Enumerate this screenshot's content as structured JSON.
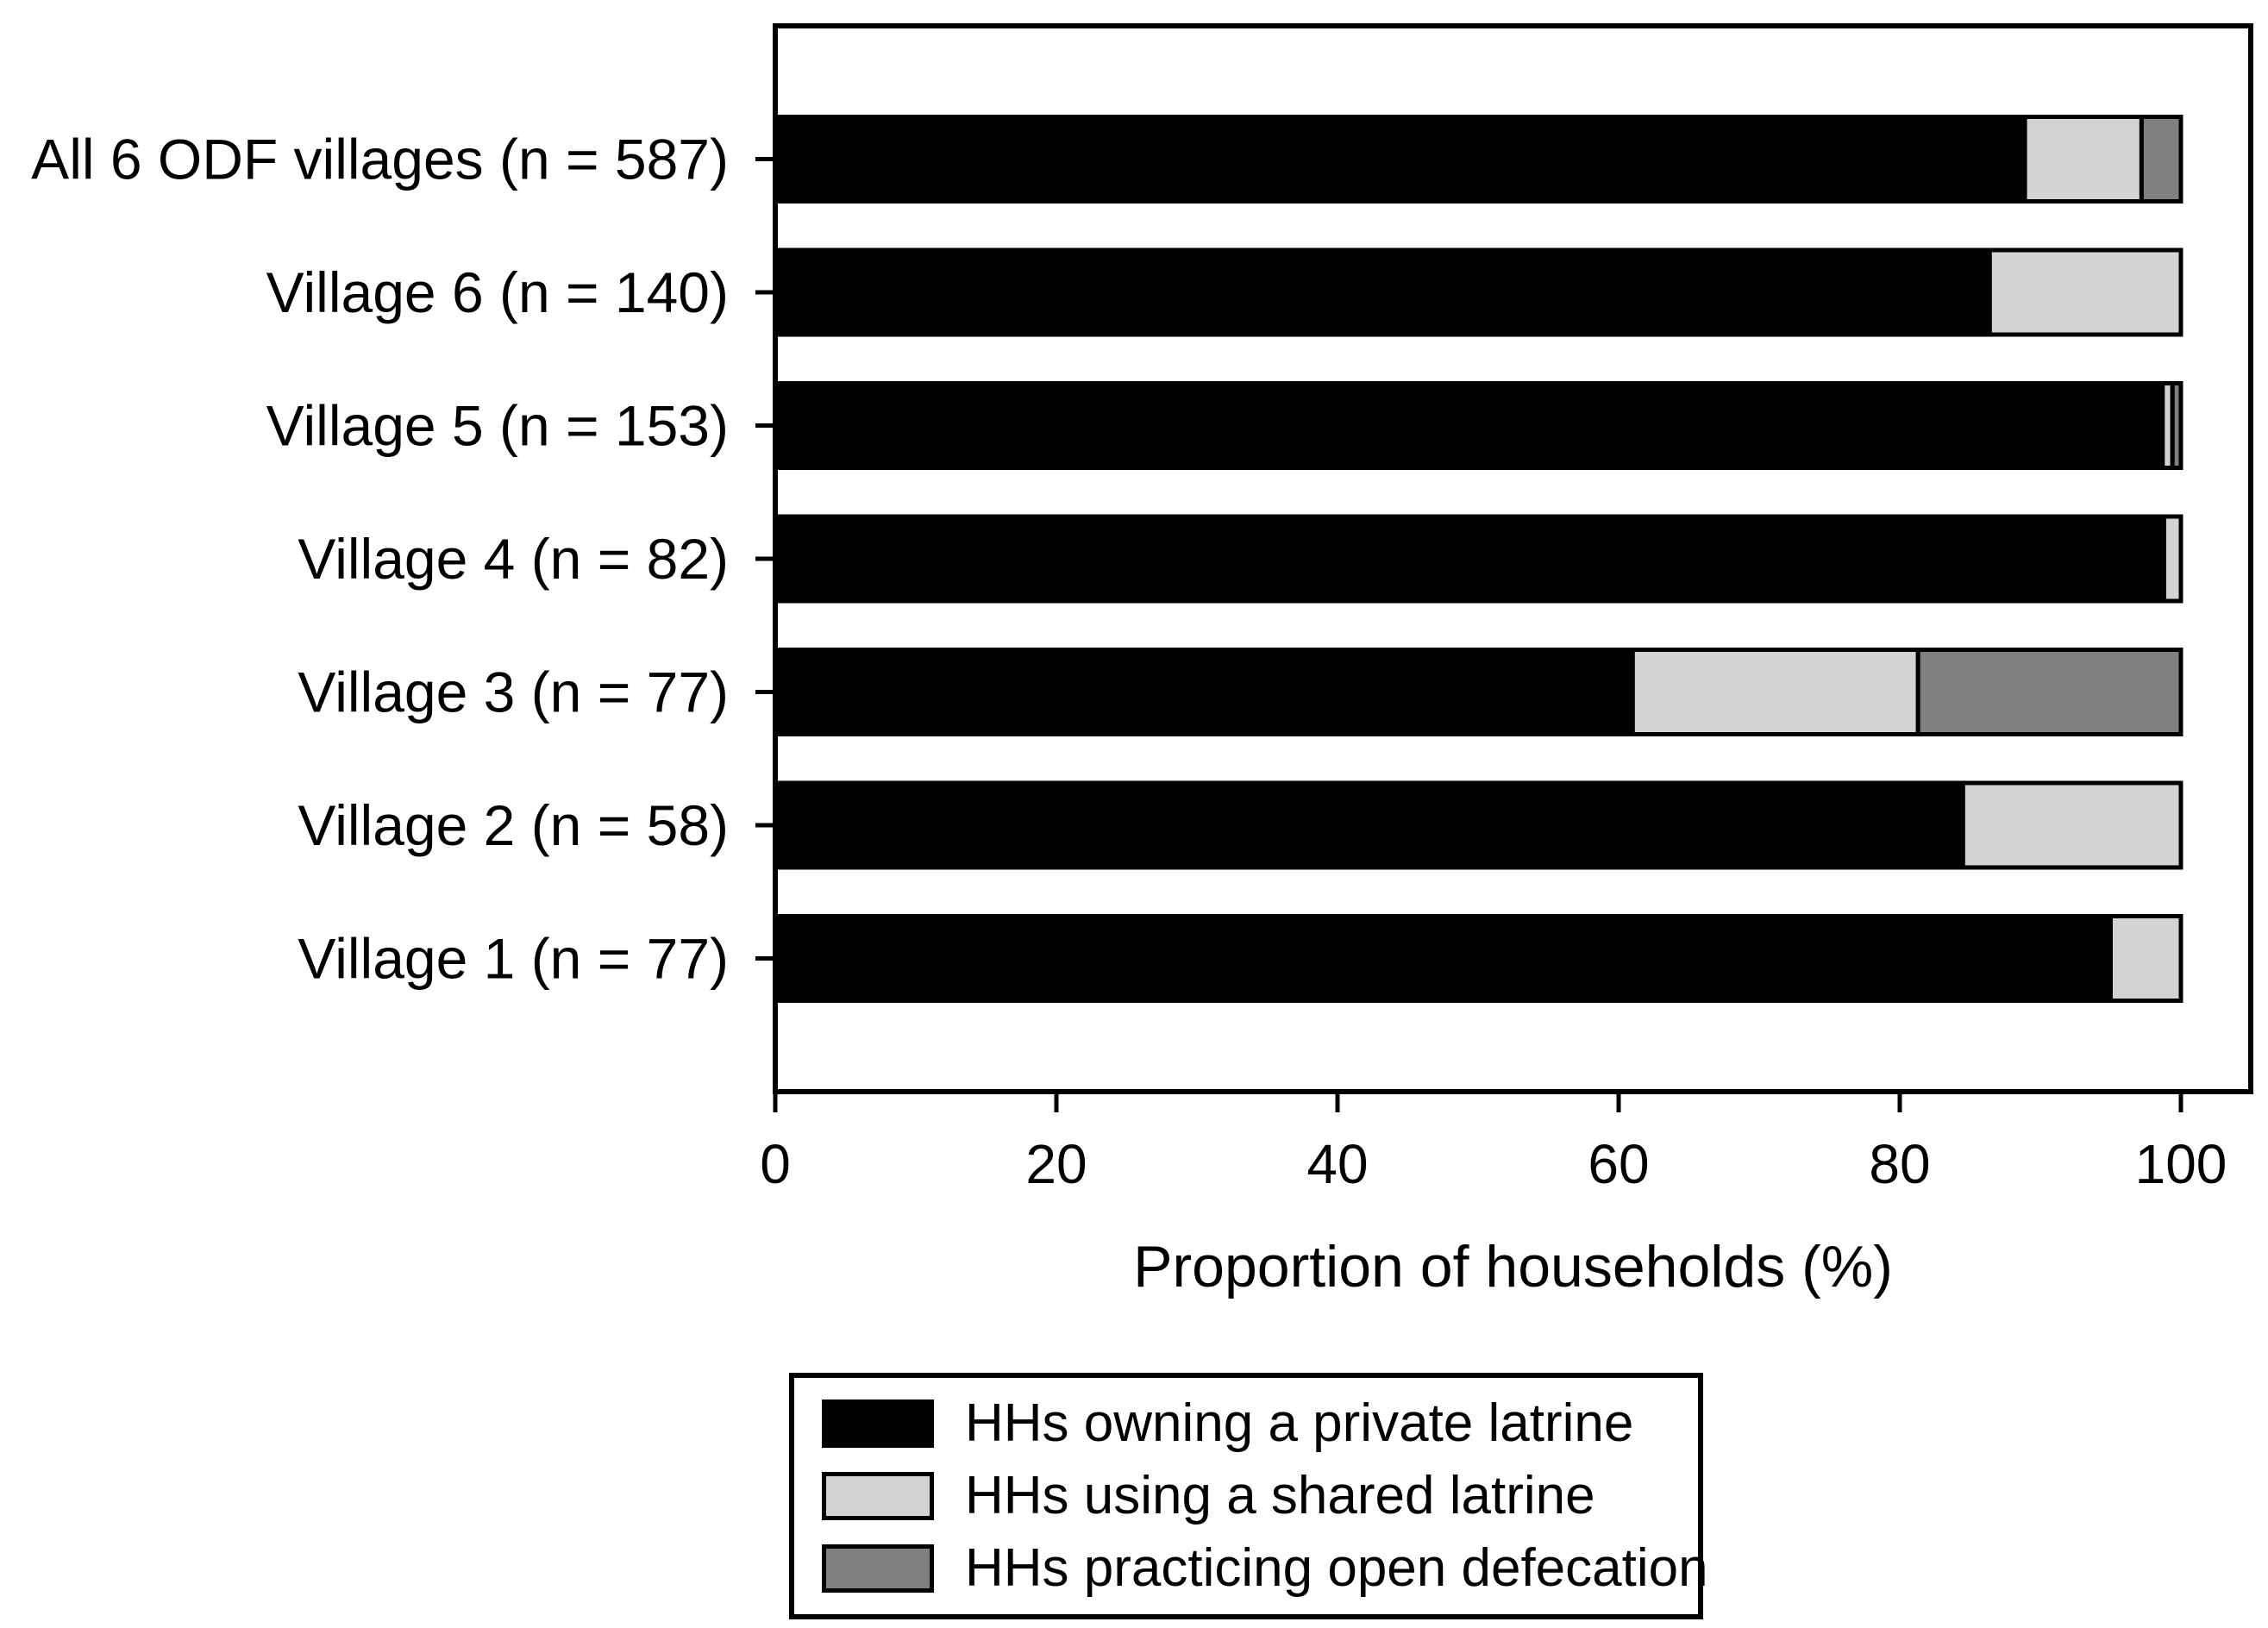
{
  "chart_data": {
    "type": "bar",
    "orientation": "horizontal",
    "stacked": true,
    "title": "",
    "xlabel": "Proportion of households (%)",
    "ylabel": "",
    "xlim": [
      0,
      100
    ],
    "x_ticks": [
      0,
      20,
      40,
      60,
      80,
      100
    ],
    "grid": false,
    "legend_position": "bottom",
    "background_color": "#ffffff",
    "bar_border_color": "#000000",
    "categories": [
      "All 6 ODF villages (n = 587)",
      "Village 6 (n = 140)",
      "Village 5 (n = 153)",
      "Village 4 (n = 82)",
      "Village 3 (n = 77)",
      "Village 2 (n = 58)",
      "Village 1 (n = 77)"
    ],
    "series": [
      {
        "name": "HHs owning a private latrine",
        "color": "#000000",
        "values": [
          88.9,
          86.4,
          98.7,
          98.8,
          61.0,
          84.5,
          95.0
        ]
      },
      {
        "name": "HHs using a shared latrine",
        "color": "#d3d3d3",
        "values": [
          8.3,
          13.6,
          0.7,
          1.2,
          20.3,
          15.5,
          5.0
        ]
      },
      {
        "name": "HHs practicing open defecation",
        "color": "#808080",
        "values": [
          2.8,
          0.0,
          0.6,
          0.0,
          18.7,
          0.0,
          0.0
        ]
      }
    ]
  }
}
